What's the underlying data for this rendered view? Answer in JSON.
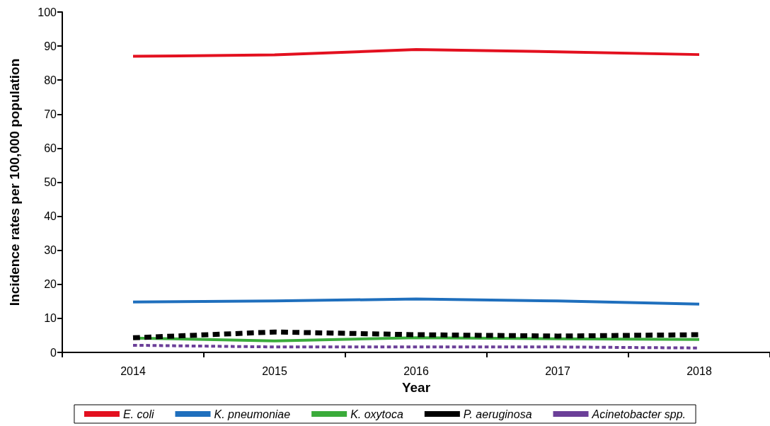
{
  "chart_data": {
    "type": "line",
    "xlabel": "Year",
    "ylabel": "Incidence rates per 100,000 population",
    "categories": [
      "2014",
      "2015",
      "2016",
      "2017",
      "2018"
    ],
    "series": [
      {
        "name": "E. coli",
        "color": "#e3101f",
        "values": [
          87.0,
          87.4,
          89.0,
          88.3,
          87.5
        ]
      },
      {
        "name": "K. pneumoniae",
        "color": "#1f6fbd",
        "values": [
          14.8,
          15.1,
          15.7,
          15.1,
          14.2
        ]
      },
      {
        "name": "K. oxytoca",
        "color": "#3aab3a",
        "values": [
          4.2,
          3.4,
          4.3,
          4.0,
          3.8
        ]
      },
      {
        "name": "P. aeruginosa",
        "color": "#000000",
        "line_style": "dashed",
        "values": [
          4.3,
          6.0,
          5.2,
          4.8,
          5.2
        ]
      },
      {
        "name": "Acinetobacter spp.",
        "color": "#6b3f98",
        "line_style": "dashed",
        "values": [
          2.1,
          1.6,
          1.6,
          1.6,
          1.3
        ]
      }
    ],
    "ylim": [
      0,
      100
    ],
    "yticks": [
      0,
      10,
      20,
      30,
      40,
      50,
      60,
      70,
      80,
      90,
      100
    ],
    "grid": false,
    "legend": "bottom",
    "marker": "none"
  }
}
